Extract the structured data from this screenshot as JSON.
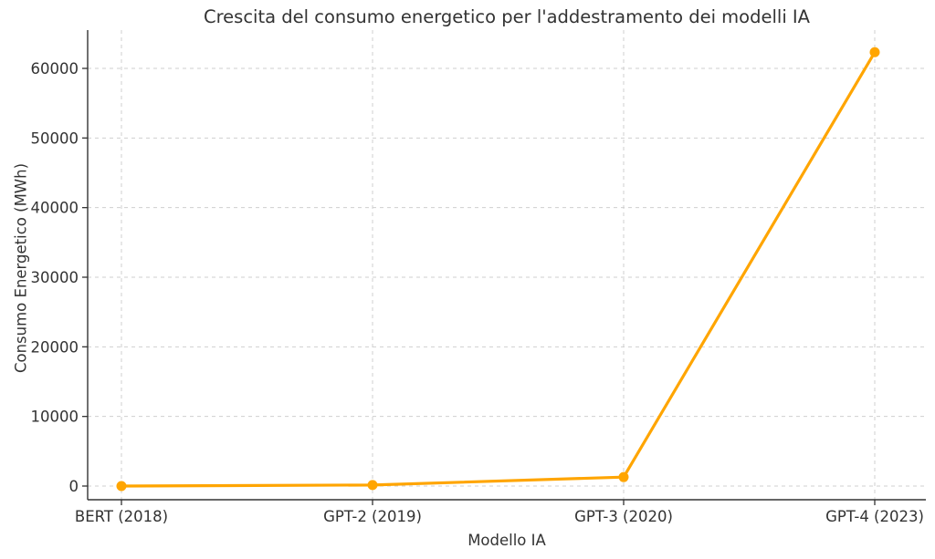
{
  "chart_data": {
    "type": "line",
    "title": "Crescita del consumo energetico per l'addestramento dei modelli IA",
    "xlabel": "Modello IA",
    "ylabel": "Consumo Energetico (MWh)",
    "categories": [
      "BERT (2018)",
      "GPT-2 (2019)",
      "GPT-3 (2020)",
      "GPT-4 (2023)"
    ],
    "series": [
      {
        "name": "Consumo energetico (MWh)",
        "values": [
          1.5,
          150,
          1287,
          62319
        ]
      }
    ],
    "yticks": [
      0,
      10000,
      20000,
      30000,
      40000,
      50000,
      60000
    ],
    "ylim": [
      -1800,
      65500
    ],
    "grid": true,
    "grid_style": "dashed",
    "legend_position": "none",
    "colors": {
      "line": "#FFA500",
      "marker": "#FFA500",
      "grid": "#CFCFCF",
      "spine": "#333333",
      "text": "#333333",
      "background": "#FFFFFF"
    }
  }
}
